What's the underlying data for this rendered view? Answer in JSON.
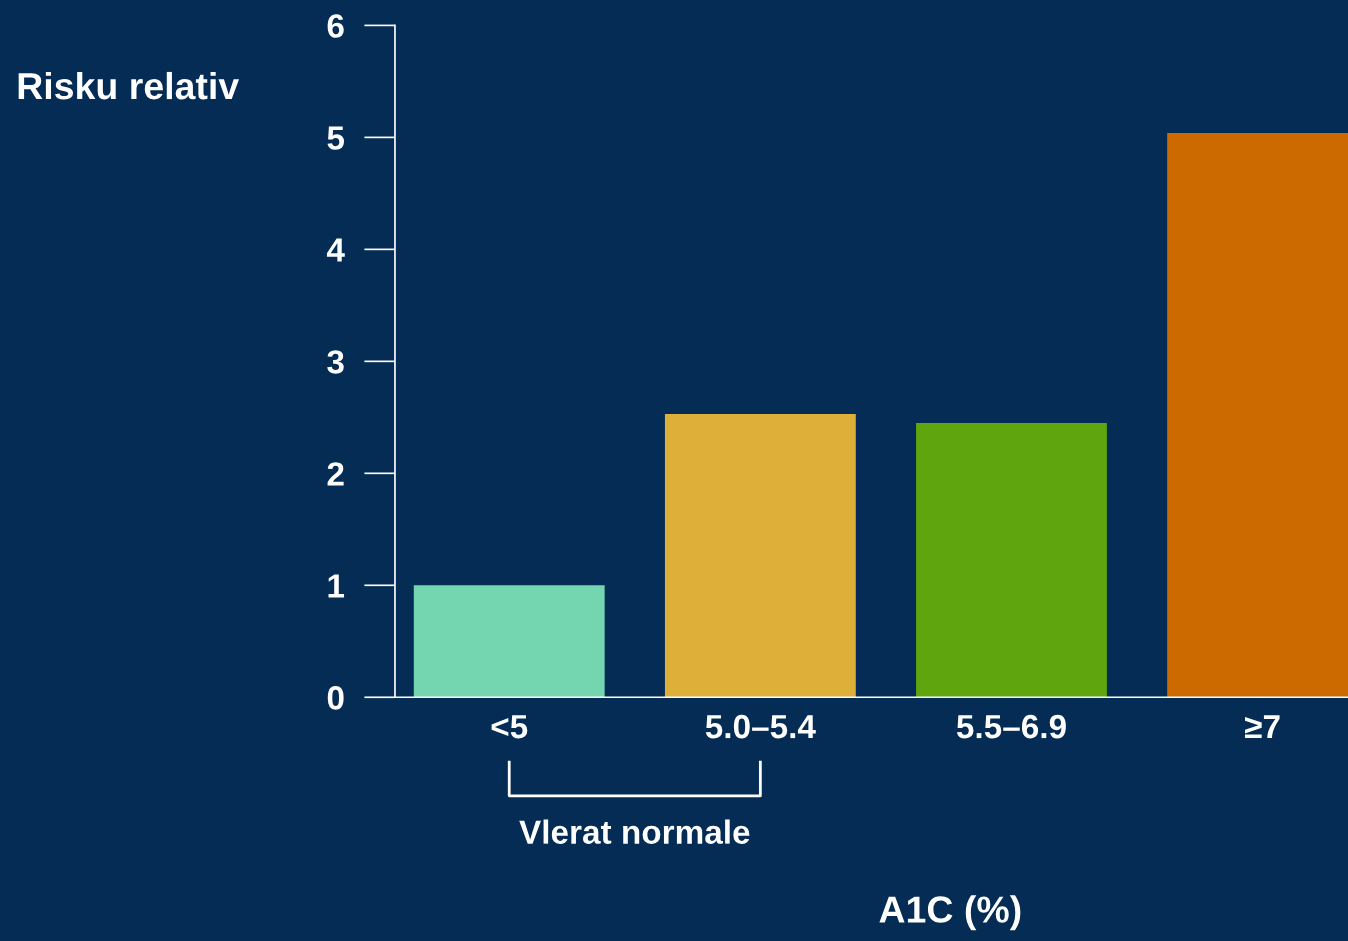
{
  "chart_data": {
    "type": "bar",
    "ylabel": "Risku relativ",
    "xlabel": "A1C (%)",
    "categories": [
      "<5",
      "5.0–5.4",
      "5.5–6.9",
      "≥7"
    ],
    "values": [
      1.0,
      2.53,
      2.45,
      5.04
    ],
    "colors": [
      "#74d6b0",
      "#deb03a",
      "#5ea50e",
      "#cc6a00"
    ],
    "ylim": [
      0,
      6
    ],
    "yticks": [
      0,
      1,
      2,
      3,
      4,
      5,
      6
    ],
    "grid": false,
    "annotations": [
      "Vlerat normale"
    ]
  }
}
